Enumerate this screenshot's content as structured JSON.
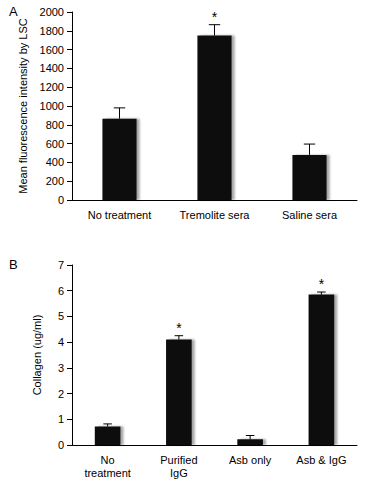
{
  "chart_data": [
    {
      "type": "bar",
      "title": "A",
      "y_label": "Mean fluorescence intensity by LSC",
      "categories": [
        "No treatment",
        "Tremolite sera",
        "Saline sera"
      ],
      "values": [
        865,
        1750,
        480
      ],
      "errors": [
        115,
        115,
        115
      ],
      "annotations": [
        {
          "category": "Tremolite sera",
          "text": "*"
        }
      ],
      "color": "#111111",
      "ylim": [
        0,
        2000
      ],
      "yticks": [
        0,
        200,
        400,
        600,
        800,
        1000,
        1200,
        1400,
        1600,
        1800,
        2000
      ],
      "grid": false
    },
    {
      "type": "bar",
      "title": "B",
      "y_label": "Collagen (ug/ml)",
      "categories": [
        "No\ntreatment",
        "Purified\nIgG",
        "Asb only",
        "Asb & IgG"
      ],
      "values": [
        0.72,
        4.1,
        0.22,
        5.85
      ],
      "errors": [
        0.1,
        0.15,
        0.15,
        0.1
      ],
      "annotations": [
        {
          "category": "Purified\nIgG",
          "text": "*"
        },
        {
          "category": "Asb & IgG",
          "text": "*"
        }
      ],
      "color": "#111111",
      "ylim": [
        0,
        7
      ],
      "yticks": [
        0,
        1,
        2,
        3,
        4,
        5,
        6,
        7
      ],
      "grid": false
    }
  ]
}
